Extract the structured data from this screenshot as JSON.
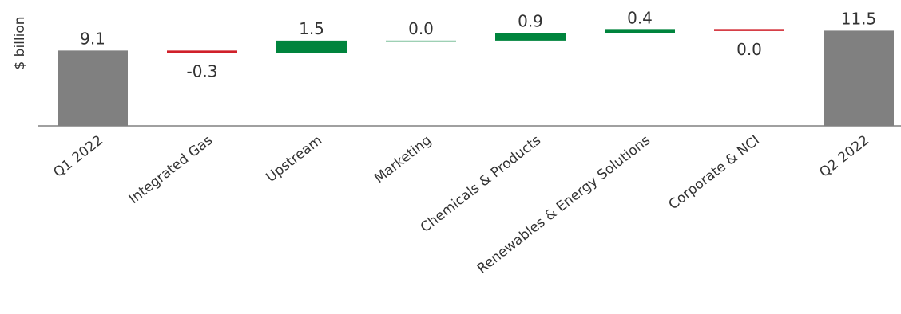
{
  "chart_data": {
    "type": "waterfall",
    "ylabel": "$ billion",
    "categories": [
      "Q1 2022",
      "Integrated Gas",
      "Upstream",
      "Marketing",
      "Chemicals & Products",
      "Renewables & Energy Solutions",
      "Corporate & NCI",
      "Q2 2022"
    ],
    "values": [
      9.1,
      -0.3,
      1.5,
      0.0,
      0.9,
      0.4,
      0.0,
      11.5
    ],
    "labels": [
      "9.1",
      "-0.3",
      "1.5",
      "0.0",
      "0.9",
      "0.4",
      "0.0",
      "11.5"
    ],
    "kinds": [
      "total",
      "delta",
      "delta",
      "delta",
      "delta",
      "delta",
      "delta",
      "total"
    ],
    "bar_colors": [
      "#808080",
      "#d0202a",
      "#00843d",
      "#00843d",
      "#00843d",
      "#00843d",
      "#d0202a",
      "#808080"
    ],
    "grid": false
  }
}
